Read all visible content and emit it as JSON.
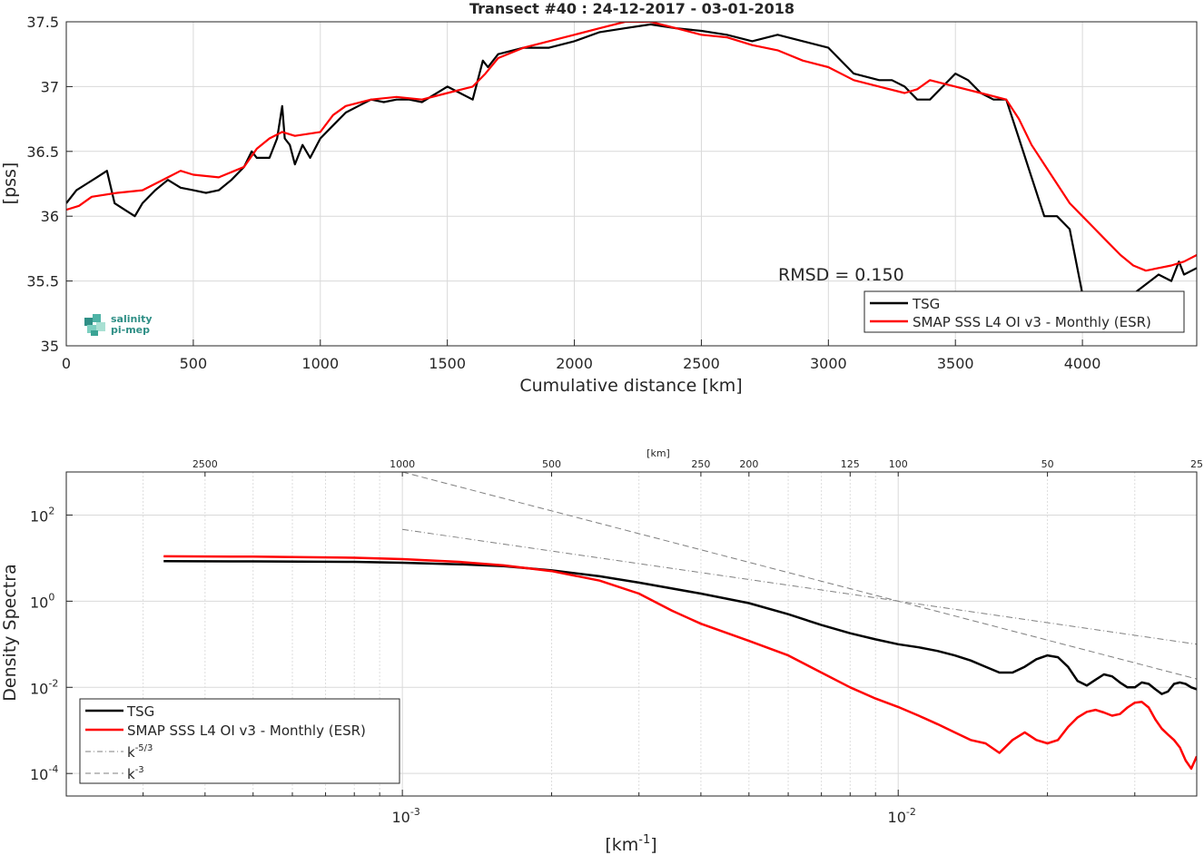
{
  "chart_data": [
    {
      "type": "line",
      "title": "Transect #40 : 24-12-2017 - 03-01-2018",
      "xlabel": "Cumulative distance [km]",
      "ylabel": "[pss]",
      "xlim": [
        0,
        4450
      ],
      "ylim": [
        35,
        37.5
      ],
      "xticks": [
        "0",
        "500",
        "1000",
        "1500",
        "2000",
        "2500",
        "3000",
        "3500",
        "4000"
      ],
      "yticks": [
        "35",
        "35.5",
        "36",
        "36.5",
        "37",
        "37.5"
      ],
      "grid": true,
      "legend": "bottom-right",
      "annotation": "RMSD = 0.150",
      "logo": {
        "line1": "salinity",
        "line2": "pi-mep"
      },
      "series": [
        {
          "name": "TSG",
          "color": "#000000",
          "x": [
            0,
            40,
            80,
            120,
            160,
            190,
            230,
            270,
            300,
            350,
            400,
            450,
            500,
            550,
            600,
            650,
            700,
            730,
            750,
            800,
            830,
            850,
            860,
            880,
            900,
            930,
            960,
            1000,
            1050,
            1100,
            1150,
            1200,
            1250,
            1300,
            1350,
            1400,
            1500,
            1600,
            1640,
            1660,
            1700,
            1800,
            1900,
            2000,
            2100,
            2200,
            2300,
            2400,
            2500,
            2600,
            2700,
            2800,
            2900,
            3000,
            3100,
            3200,
            3250,
            3300,
            3350,
            3400,
            3450,
            3500,
            3550,
            3600,
            3650,
            3700,
            3750,
            3800,
            3850,
            3900,
            3950,
            3970,
            3990,
            4000,
            4100,
            4200,
            4300,
            4350,
            4380,
            4400,
            4450
          ],
          "y": [
            36.1,
            36.2,
            36.25,
            36.3,
            36.35,
            36.1,
            36.05,
            36.0,
            36.1,
            36.2,
            36.28,
            36.22,
            36.2,
            36.18,
            36.2,
            36.28,
            36.38,
            36.5,
            36.45,
            36.45,
            36.6,
            36.85,
            36.6,
            36.55,
            36.4,
            36.55,
            36.45,
            36.6,
            36.7,
            36.8,
            36.85,
            36.9,
            36.88,
            36.9,
            36.9,
            36.88,
            37.0,
            36.9,
            37.2,
            37.15,
            37.25,
            37.3,
            37.3,
            37.35,
            37.42,
            37.45,
            37.48,
            37.45,
            37.43,
            37.4,
            37.35,
            37.4,
            37.35,
            37.3,
            37.1,
            37.05,
            37.05,
            37.0,
            36.9,
            36.9,
            37.0,
            37.1,
            37.05,
            36.95,
            36.9,
            36.9,
            36.6,
            36.3,
            36.0,
            36.0,
            35.9,
            35.7,
            35.5,
            35.4,
            35.4,
            35.4,
            35.55,
            35.5,
            35.65,
            35.55,
            35.6
          ]
        },
        {
          "name": "SMAP SSS L4 OI v3 - Monthly (ESR)",
          "color": "#ff0000",
          "x": [
            0,
            50,
            100,
            200,
            300,
            400,
            450,
            500,
            600,
            700,
            750,
            800,
            850,
            900,
            1000,
            1050,
            1100,
            1200,
            1300,
            1400,
            1500,
            1600,
            1650,
            1700,
            1800,
            1900,
            2000,
            2100,
            2200,
            2300,
            2400,
            2500,
            2600,
            2700,
            2800,
            2900,
            3000,
            3100,
            3200,
            3300,
            3350,
            3400,
            3500,
            3600,
            3700,
            3750,
            3800,
            3850,
            3900,
            3950,
            4000,
            4050,
            4100,
            4150,
            4200,
            4250,
            4300,
            4350,
            4400,
            4450
          ],
          "y": [
            36.05,
            36.08,
            36.15,
            36.18,
            36.2,
            36.3,
            36.35,
            36.32,
            36.3,
            36.38,
            36.52,
            36.6,
            36.65,
            36.62,
            36.65,
            36.78,
            36.85,
            36.9,
            36.92,
            36.9,
            36.95,
            37.0,
            37.1,
            37.22,
            37.3,
            37.35,
            37.4,
            37.45,
            37.5,
            37.5,
            37.45,
            37.4,
            37.38,
            37.32,
            37.28,
            37.2,
            37.15,
            37.05,
            37.0,
            36.95,
            36.98,
            37.05,
            37.0,
            36.95,
            36.9,
            36.75,
            36.55,
            36.4,
            36.25,
            36.1,
            36.0,
            35.9,
            35.8,
            35.7,
            35.62,
            35.58,
            35.6,
            35.62,
            35.65,
            35.7
          ]
        }
      ]
    },
    {
      "type": "line",
      "xlabel": "[km",
      "xlabel_sup": "-1",
      "xlabel_end": "]",
      "ylabel": "Density Spectra",
      "top_axis_label": "[km]",
      "top_ticks": [
        "2500",
        "1000",
        "500",
        "250",
        "200",
        "125",
        "100",
        "50",
        "25"
      ],
      "xscale": "log",
      "yscale": "log",
      "xlim": [
        0.00021,
        0.04
      ],
      "ylim": [
        3e-05,
        1000
      ],
      "xticks": [
        {
          "base": "10",
          "exp": "-3"
        },
        {
          "base": "10",
          "exp": "-2"
        }
      ],
      "yticks": [
        {
          "base": "10",
          "exp": "-4"
        },
        {
          "base": "10",
          "exp": "-2"
        },
        {
          "base": "10",
          "exp": "0"
        },
        {
          "base": "10",
          "exp": "2"
        }
      ],
      "grid": true,
      "legend": "bottom-left",
      "series": [
        {
          "name": "TSG",
          "color": "#000000",
          "style": "solid",
          "x": [
            0.00033,
            0.0005,
            0.0008,
            0.001,
            0.0013,
            0.0016,
            0.002,
            0.0025,
            0.003,
            0.004,
            0.005,
            0.006,
            0.007,
            0.008,
            0.009,
            0.01,
            0.011,
            0.012,
            0.013,
            0.014,
            0.015,
            0.016,
            0.017,
            0.018,
            0.019,
            0.02,
            0.021,
            0.022,
            0.023,
            0.024,
            0.025,
            0.026,
            0.027,
            0.028,
            0.029,
            0.03,
            0.031,
            0.032,
            0.033,
            0.034,
            0.035,
            0.036,
            0.037,
            0.038,
            0.039,
            0.04
          ],
          "y": [
            8.5,
            8.4,
            8.2,
            7.8,
            7.2,
            6.5,
            5.2,
            3.8,
            2.7,
            1.5,
            0.9,
            0.5,
            0.28,
            0.18,
            0.13,
            0.1,
            0.085,
            0.07,
            0.055,
            0.042,
            0.03,
            0.022,
            0.022,
            0.03,
            0.045,
            0.055,
            0.05,
            0.03,
            0.014,
            0.011,
            0.015,
            0.02,
            0.018,
            0.013,
            0.01,
            0.01,
            0.013,
            0.012,
            0.009,
            0.007,
            0.008,
            0.012,
            0.013,
            0.012,
            0.01,
            0.009
          ]
        },
        {
          "name": "SMAP SSS L4 OI v3 - Monthly (ESR)",
          "color": "#ff0000",
          "style": "solid",
          "x": [
            0.00033,
            0.0005,
            0.0008,
            0.001,
            0.0013,
            0.0016,
            0.002,
            0.0025,
            0.003,
            0.0035,
            0.004,
            0.005,
            0.006,
            0.007,
            0.008,
            0.009,
            0.01,
            0.011,
            0.012,
            0.013,
            0.014,
            0.015,
            0.016,
            0.017,
            0.018,
            0.019,
            0.02,
            0.021,
            0.022,
            0.023,
            0.024,
            0.025,
            0.026,
            0.027,
            0.028,
            0.029,
            0.03,
            0.031,
            0.032,
            0.033,
            0.034,
            0.035,
            0.036,
            0.037,
            0.038,
            0.039,
            0.04
          ],
          "y": [
            11,
            10.8,
            10.2,
            9.5,
            8.2,
            6.8,
            5.0,
            3.0,
            1.5,
            0.6,
            0.3,
            0.12,
            0.055,
            0.022,
            0.01,
            0.0055,
            0.0035,
            0.0022,
            0.0014,
            0.0009,
            0.0006,
            0.0005,
            0.0003,
            0.0006,
            0.0009,
            0.0006,
            0.0005,
            0.0006,
            0.0012,
            0.002,
            0.0027,
            0.003,
            0.0026,
            0.0022,
            0.0024,
            0.0034,
            0.0044,
            0.0046,
            0.0034,
            0.0018,
            0.0011,
            0.0008,
            0.0006,
            0.0004,
            0.0002,
            0.00013,
            0.00025
          ]
        },
        {
          "name": "k^-5/3",
          "label_base": "k",
          "label_exp": "-5/3",
          "color": "#7f7f7f",
          "style": "dashdot",
          "x": [
            0.001,
            0.04
          ],
          "y": [
            46.4,
            0.1
          ]
        },
        {
          "name": "k^-3",
          "label_base": "k",
          "label_exp": "-3",
          "color": "#7f7f7f",
          "style": "dashed",
          "x": [
            0.001,
            0.04
          ],
          "y": [
            1000,
            0.0156
          ]
        }
      ]
    }
  ]
}
